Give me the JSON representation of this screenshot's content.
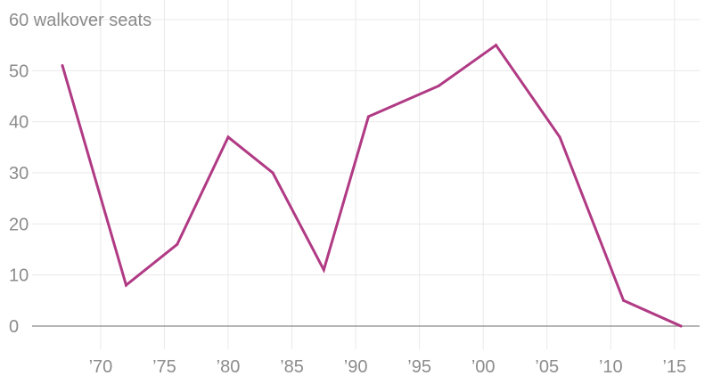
{
  "chart_data": {
    "type": "line",
    "title": "",
    "xlabel": "",
    "ylabel": "",
    "y_unit_label": "walkover seats",
    "x": [
      1967,
      1972,
      1976,
      1980,
      1983.5,
      1987.5,
      1991,
      1996.5,
      2001,
      2006,
      2011,
      2015.5
    ],
    "series": [
      {
        "name": "",
        "color": "#b03a84",
        "values": [
          51,
          8,
          16,
          37,
          30,
          11,
          41,
          47,
          55,
          37,
          5,
          0
        ]
      }
    ],
    "y_ticks": [
      0,
      10,
      20,
      30,
      40,
      50,
      60
    ],
    "x_ticks": [
      1970,
      1975,
      1980,
      1985,
      1990,
      1995,
      2000,
      2005,
      2010,
      2015
    ],
    "x_tick_labels": [
      "’70",
      "’75",
      "’80",
      "’85",
      "’90",
      "’95",
      "’00",
      "’05",
      "’10",
      "’15"
    ],
    "ylim": [
      0,
      60
    ],
    "xlim": [
      1967,
      2015.5
    ],
    "grid": true,
    "colors": {
      "grid": "#e9e9e9",
      "baseline": "#8a8a8a",
      "tick_text": "#8c8c8c"
    }
  }
}
